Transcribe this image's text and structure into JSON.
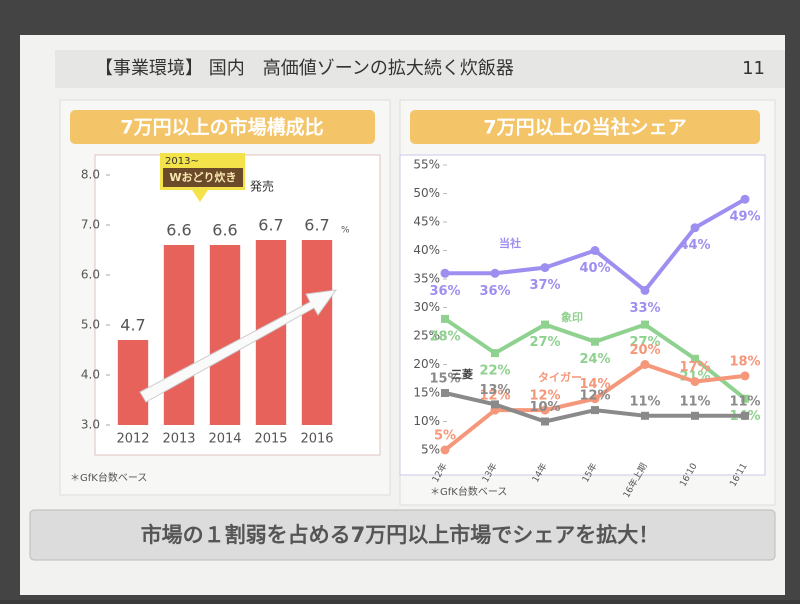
{
  "slide_title": "【事業環境】 国内　高価値ゾーンの拡大続く炊飯器",
  "page_number": 11,
  "conclusion": "市場の１割弱を占める7万円以上市場でシェアを拡大！",
  "chart_data": [
    {
      "type": "bar",
      "title": "7万円以上の市場構成比",
      "categories": [
        "2012",
        "2013",
        "2014",
        "2015",
        "2016"
      ],
      "values": [
        4.7,
        6.6,
        6.6,
        6.7,
        6.7
      ],
      "color": "#e8625c",
      "unit": "%",
      "ylim": [
        3,
        8
      ],
      "yticks": [
        {
          "value": 3,
          "label": "3.0"
        },
        {
          "value": 4,
          "label": "4.0"
        },
        {
          "value": 5,
          "label": "5.0"
        },
        {
          "value": 6,
          "label": "6.0"
        },
        {
          "value": 7,
          "label": "7.0"
        },
        {
          "value": 8,
          "label": "8.0"
        }
      ],
      "annotations": [
        "2013~",
        "Wおどり炊き",
        "発売"
      ],
      "source": "＊GfK台数ベース"
    },
    {
      "type": "line",
      "title": "7万円以上の当社シェア",
      "categories": [
        "12年",
        "13年",
        "14年",
        "15年",
        "16年上期",
        "16'10",
        "16'11"
      ],
      "series": [
        {
          "name": "当社",
          "color": "#9d8ff0",
          "values": [
            36,
            36,
            37,
            40,
            33,
            44,
            49
          ],
          "value_labels": [
            "36%",
            "36%",
            "37%",
            "40%",
            "33%",
            "44%",
            "49%"
          ]
        },
        {
          "name": "象印",
          "color": "#8fd18f",
          "values": [
            28,
            22,
            27,
            24,
            27,
            21,
            14
          ],
          "value_labels": [
            "28%",
            "22%",
            "27%",
            "24%",
            "27%",
            "21%",
            "14%"
          ]
        },
        {
          "name": "タイガー",
          "color": "#f5977a",
          "values": [
            5,
            12,
            12,
            14,
            20,
            17,
            18
          ],
          "value_labels": [
            "5%",
            "12%",
            "12%",
            "14%",
            "20%",
            "17%",
            "18%"
          ]
        },
        {
          "name": "三菱",
          "color": "#8a8a8a",
          "values": [
            15,
            13,
            10,
            12,
            11,
            11,
            11
          ],
          "value_labels": [
            "15%",
            "13%",
            "10%",
            "12%",
            "11%",
            "11%",
            "11%"
          ]
        }
      ],
      "ylim": [
        5,
        55
      ],
      "yticks": [
        {
          "value": 5,
          "label": "5%"
        },
        {
          "value": 10,
          "label": "10%"
        },
        {
          "value": 15,
          "label": "15%"
        },
        {
          "value": 20,
          "label": "20%"
        },
        {
          "value": 25,
          "label": "25%"
        },
        {
          "value": 30,
          "label": "30%"
        },
        {
          "value": 35,
          "label": "35%"
        },
        {
          "value": 40,
          "label": "40%"
        },
        {
          "value": 45,
          "label": "45%"
        },
        {
          "value": 50,
          "label": "50%"
        },
        {
          "value": 55,
          "label": "55%"
        }
      ],
      "source": "＊GfK台数ベース"
    }
  ]
}
